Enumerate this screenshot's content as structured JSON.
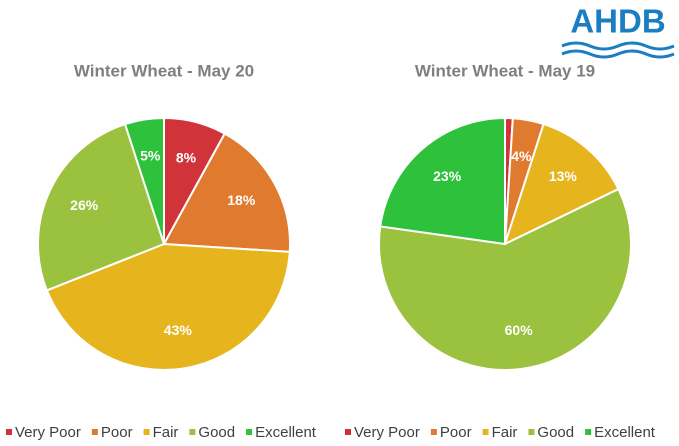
{
  "logo": "AHDB",
  "chart_data": [
    {
      "type": "pie",
      "title": "Winter Wheat - May 20",
      "categories": [
        "Very Poor",
        "Poor",
        "Fair",
        "Good",
        "Excellent"
      ],
      "values": [
        8,
        18,
        43,
        26,
        5
      ],
      "value_labels": [
        "8%",
        "18%",
        "43%",
        "26%",
        "5%"
      ],
      "colors": [
        "#d0343a",
        "#e07a2e",
        "#e6b51e",
        "#9bc23f",
        "#2dc13c"
      ],
      "legend": "bottom"
    },
    {
      "type": "pie",
      "title": "Winter Wheat - May 19",
      "categories": [
        "Very Poor",
        "Poor",
        "Fair",
        "Good",
        "Excellent"
      ],
      "values": [
        1,
        4,
        13,
        60,
        23
      ],
      "value_labels": [
        null,
        "4%",
        "13%",
        "60%",
        "23%"
      ],
      "colors": [
        "#d0343a",
        "#e07a2e",
        "#e6b51e",
        "#9bc23f",
        "#2dc13c"
      ],
      "legend": "bottom"
    }
  ]
}
